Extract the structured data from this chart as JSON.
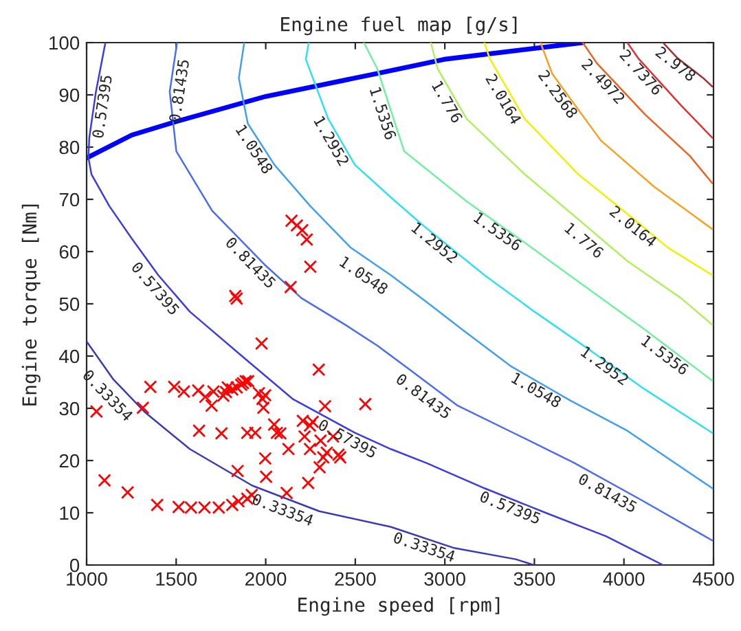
{
  "chart_data": {
    "type": "line",
    "title": "Engine fuel map [g/s]",
    "xlabel": "Engine speed [rpm]",
    "ylabel": "Engine torque [Nm]",
    "xlim": [
      1000,
      4500
    ],
    "xticks": [
      1000,
      1500,
      2000,
      2500,
      3000,
      3500,
      4000,
      4500
    ],
    "ylim": [
      0,
      100
    ],
    "yticks": [
      0,
      10,
      20,
      30,
      40,
      50,
      60,
      70,
      80,
      90,
      100
    ],
    "series": [
      {
        "type": "line",
        "color": "#3a3ab8",
        "x": [
          1000,
          1150,
          1327,
          1576,
          1925,
          2299,
          2698,
          3047,
          3396,
          3496
        ],
        "values": [
          42.8,
          35.5,
          29.2,
          22.2,
          15.2,
          10.3,
          7.3,
          3.3,
          1.1,
          0
        ]
      },
      {
        "type": "line",
        "color": "#3c3ce0",
        "x": [
          1105,
          1052,
          1015,
          1010,
          1027,
          1127,
          1252,
          1400,
          1576,
          1850,
          2150,
          2498,
          2698,
          2900,
          3221,
          3570,
          3900,
          4218
        ],
        "values": [
          100,
          90.6,
          81.8,
          78,
          74.8,
          68.7,
          62.5,
          55.5,
          48.5,
          40.5,
          31.8,
          25.3,
          22.2,
          19.5,
          14.7,
          9.9,
          5.5,
          0
        ]
      },
      {
        "type": "line",
        "color": "#4a6cf0",
        "x": [
          1505,
          1464,
          1501,
          1701,
          1875,
          2000,
          2199,
          2448,
          2623,
          2800,
          3072,
          3400,
          3720,
          4094,
          4493
        ],
        "values": [
          100,
          90.6,
          79.2,
          67.8,
          61.7,
          57.3,
          51.1,
          45.9,
          42,
          37.5,
          30.5,
          25,
          19.6,
          12.5,
          4.7
        ]
      },
      {
        "type": "line",
        "color": "#40a0f0",
        "x": [
          1880,
          1850,
          1900,
          2049,
          2249,
          2473,
          2698,
          2900,
          3100,
          3371,
          3700,
          4019,
          4493
        ],
        "values": [
          100,
          93.2,
          84.5,
          76.6,
          68.7,
          60.8,
          55.5,
          50.3,
          45,
          38,
          31.5,
          25.7,
          14.7
        ]
      },
      {
        "type": "line",
        "color": "#30e0f0",
        "x": [
          2240,
          2224,
          2349,
          2498,
          2698,
          2872,
          3221,
          3500,
          3795,
          4100,
          4493
        ],
        "values": [
          100,
          96.8,
          85.4,
          76.6,
          70.4,
          65.2,
          55.5,
          48.5,
          41.5,
          34,
          25.3
        ]
      },
      {
        "type": "line",
        "color": "#70f0a0",
        "x": [
          2548,
          2623,
          2773,
          3122,
          3446,
          3695,
          4119,
          4493
        ],
        "values": [
          100,
          95,
          79.2,
          69.6,
          61.7,
          55.5,
          45,
          35.3
        ]
      },
      {
        "type": "line",
        "color": "#b0f060",
        "x": [
          2922,
          2960,
          3122,
          3446,
          3720,
          4019,
          4318,
          4493
        ],
        "values": [
          100,
          95,
          85.4,
          74.8,
          66.9,
          58.2,
          51.1,
          46
        ]
      },
      {
        "type": "line",
        "color": "#f0f000",
        "x": [
          3221,
          3250,
          3446,
          3745,
          4081,
          4243,
          4493
        ],
        "values": [
          100,
          97,
          85.4,
          74.8,
          65.5,
          60.8,
          55.5
        ]
      },
      {
        "type": "line",
        "color": "#f8a020",
        "x": [
          3534,
          3600,
          3870,
          4169,
          4493
        ],
        "values": [
          100,
          94,
          81.3,
          72.4,
          64.3
        ]
      },
      {
        "type": "line",
        "color": "#f06020",
        "x": [
          3770,
          3850,
          4119,
          4368,
          4493
        ],
        "values": [
          100,
          96,
          86.2,
          78.3,
          73.1
        ]
      },
      {
        "type": "line",
        "color": "#e03030",
        "x": [
          4019,
          4080,
          4318,
          4493
        ],
        "values": [
          100,
          97,
          88,
          81.8
        ]
      },
      {
        "type": "line",
        "color": "#a03030",
        "x": [
          4218,
          4300,
          4443,
          4493
        ],
        "values": [
          100,
          97,
          93.2,
          91.6
        ]
      },
      {
        "type": "line",
        "color": "#0000ff",
        "x": [
          1000,
          1252,
          1501,
          2000,
          2623,
          2997,
          3770
        ],
        "values": [
          77.9,
          82.3,
          84.9,
          89.7,
          94.1,
          96.8,
          100
        ]
      },
      {
        "type": "scatter",
        "color": "#ff0000",
        "marker": "cross",
        "x": [
          1055,
          1100,
          1229,
          1314,
          1356,
          1394,
          1489,
          1514,
          1543,
          1583,
          1623,
          1628,
          1658,
          1663,
          1698,
          1708,
          1738,
          1753,
          1763,
          1778,
          1788,
          1813,
          1813,
          1838,
          1838,
          1830,
          1843,
          1848,
          1863,
          1873,
          1888,
          1897,
          1897,
          1902,
          1922,
          1942,
          1962,
          1977,
          1982,
          1987,
          1997,
          1997,
          2002,
          2047,
          2062,
          2082,
          2117,
          2127,
          2207,
          2217,
          2237,
          2247,
          2247,
          2262,
          2296,
          2306,
          2301,
          2321,
          2331,
          2341,
          2376,
          2406,
          2416,
          2556,
          2144,
          2174,
          2204,
          2229,
          2249,
          2139
        ],
        "values": [
          29.4,
          16.2,
          13.9,
          30.1,
          34.1,
          11.5,
          34.1,
          11.1,
          33.2,
          11.0,
          33.4,
          25.7,
          11.0,
          32.2,
          30.5,
          33.2,
          11.0,
          25.2,
          32.4,
          33.1,
          34.0,
          11.5,
          33.6,
          34.0,
          51.0,
          51.5,
          18.0,
          12.2,
          34.5,
          34.8,
          35.2,
          12.7,
          25.3,
          35.2,
          13.4,
          25.3,
          32.9,
          42.4,
          31.8,
          30.1,
          32.5,
          20.4,
          16.9,
          26.9,
          25.3,
          25.2,
          13.8,
          22.2,
          27.6,
          24.6,
          15.7,
          26.7,
          22.2,
          27.4,
          37.4,
          23.8,
          18.7,
          20.6,
          30.4,
          21.5,
          24.6,
          21.1,
          20.6,
          30.8,
          65.9,
          65.0,
          64.1,
          62.3,
          57.1,
          53.2
        ]
      }
    ],
    "annotations": [
      {
        "text": "0.33354",
        "x": 1152,
        "y": 33.6
      },
      {
        "text": "0.33354",
        "x": 2112,
        "y": 12.1
      },
      {
        "text": "0.33354",
        "x": 2900,
        "y": 5
      },
      {
        "text": "0.57395",
        "x": 1040,
        "y": 88
      },
      {
        "text": "0.57395",
        "x": 1420,
        "y": 54
      },
      {
        "text": "0.57395",
        "x": 2480,
        "y": 25.6
      },
      {
        "text": "0.57395",
        "x": 3383,
        "y": 12.5
      },
      {
        "text": "0.81435",
        "x": 1470,
        "y": 91
      },
      {
        "text": "0.81435",
        "x": 1950,
        "y": 59
      },
      {
        "text": "0.81435",
        "x": 2910,
        "y": 33.6
      },
      {
        "text": "0.81435",
        "x": 3932,
        "y": 15.2
      },
      {
        "text": "1.0548",
        "x": 1975,
        "y": 80.5
      },
      {
        "text": "1.0548",
        "x": 2573,
        "y": 56.8
      },
      {
        "text": "1.0548",
        "x": 3533,
        "y": 34.9
      },
      {
        "text": "1.2952",
        "x": 2407,
        "y": 82
      },
      {
        "text": "1.2952",
        "x": 2972,
        "y": 63
      },
      {
        "text": "1.2952",
        "x": 3919,
        "y": 39.5
      },
      {
        "text": "1.5356",
        "x": 2699,
        "y": 87
      },
      {
        "text": "1.5356",
        "x": 3321,
        "y": 65.2
      },
      {
        "text": "1.5356",
        "x": 4256,
        "y": 41.5
      },
      {
        "text": "1.776",
        "x": 3053,
        "y": 89.5
      },
      {
        "text": "1.776",
        "x": 3807,
        "y": 63.4
      },
      {
        "text": "2.0164",
        "x": 3368,
        "y": 90
      },
      {
        "text": "2.0164",
        "x": 4081,
        "y": 66.1
      },
      {
        "text": "2.2568",
        "x": 3670,
        "y": 91.1
      },
      {
        "text": "2.4972",
        "x": 3919,
        "y": 93.7
      },
      {
        "text": "2.7376",
        "x": 4131,
        "y": 95.4
      },
      {
        "text": "2.978",
        "x": 4318,
        "y": 97.2
      }
    ]
  }
}
